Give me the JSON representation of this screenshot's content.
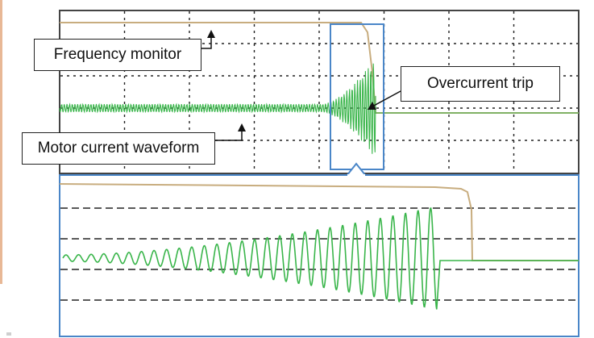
{
  "callouts": {
    "frequency_monitor": "Frequency monitor",
    "overcurrent_trip": "Overcurrent trip",
    "motor_current": "Motor current waveform"
  },
  "colors": {
    "scope_border": "#444444",
    "grid_line": "#222222",
    "motor_current_trace": "#39b54a",
    "frequency_monitor_trace": "#c8ad7f",
    "highlight_box": "#4a86c8",
    "left_accent": "#e8b896"
  }
}
